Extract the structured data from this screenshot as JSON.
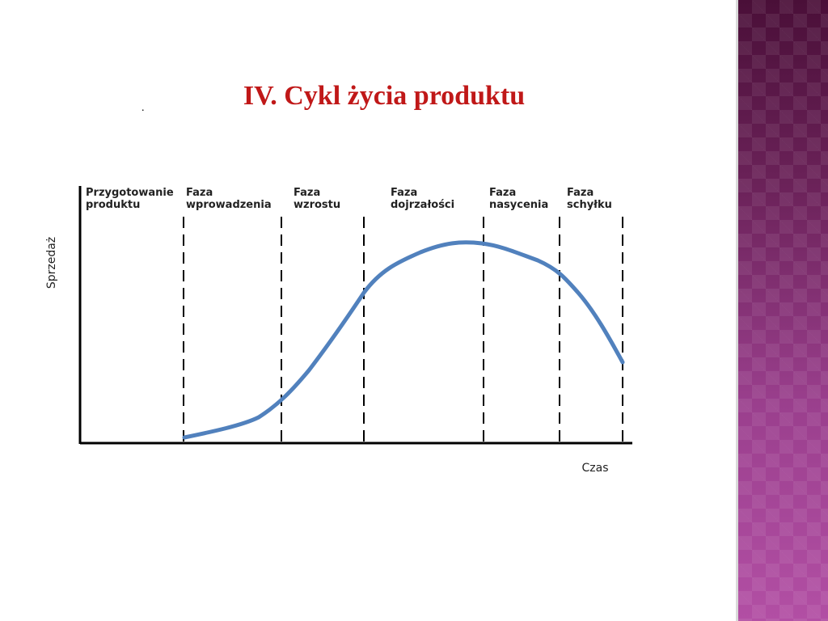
{
  "slide": {
    "title": "IV. Cykl życia produktu",
    "stray_mark": "."
  },
  "diagram": {
    "y_axis_label": "Sprzedaż",
    "x_axis_label": "Czas",
    "phases": [
      {
        "line1": "Przygotowanie",
        "line2": "produktu"
      },
      {
        "line1": "Faza",
        "line2": "wprowadzenia"
      },
      {
        "line1": "Faza",
        "line2": "wzrostu"
      },
      {
        "line1": "Faza",
        "line2": "dojrzałości"
      },
      {
        "line1": "Faza",
        "line2": "nasycenia"
      },
      {
        "line1": "Faza",
        "line2": "schyłku"
      }
    ],
    "curve_color": "#5181bd",
    "theme_colors": {
      "title": "#c01818",
      "side_panel": "#8e3a82"
    }
  }
}
